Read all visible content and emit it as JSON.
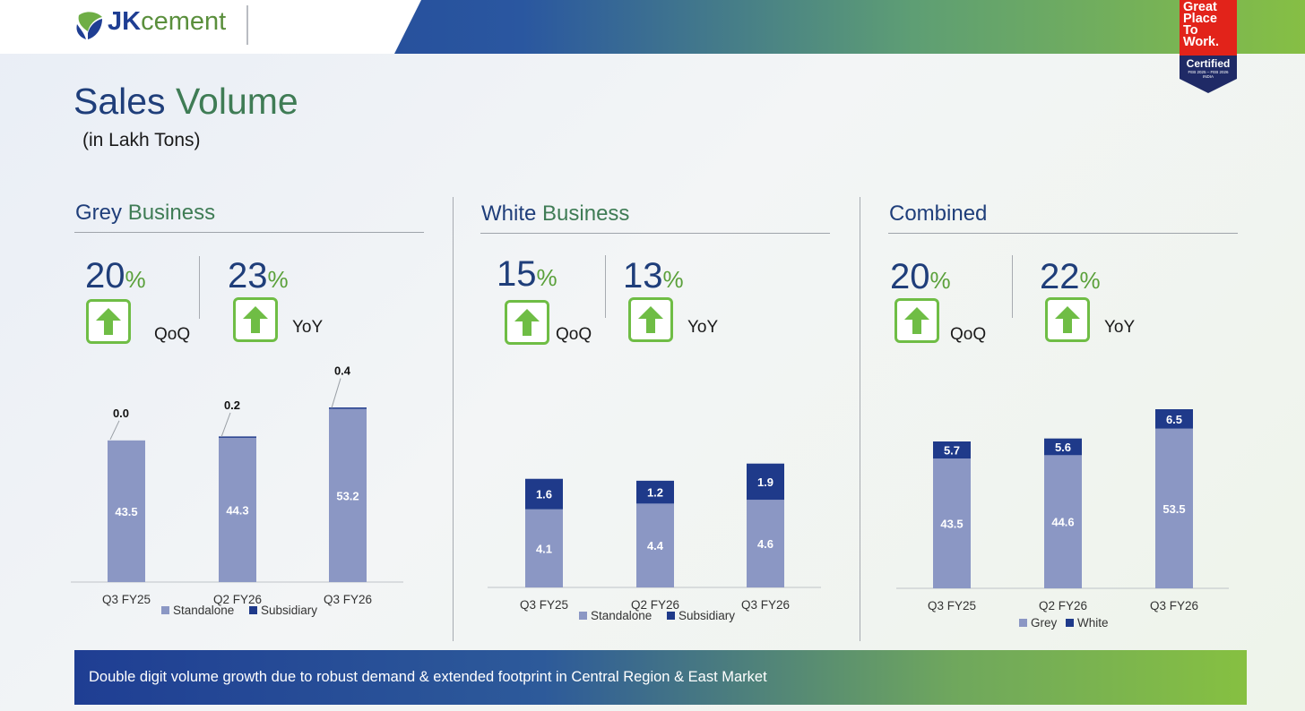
{
  "header": {
    "logo_prefix": "JK",
    "logo_suffix": "cement",
    "badge": {
      "line1": "Great",
      "line2": "Place",
      "line3": "To",
      "line4": "Work.",
      "certified": "Certified",
      "dates": "FEB 2025 – FEB 2026",
      "country": "INDIA"
    }
  },
  "page": {
    "title_part1": "Sales",
    "title_part2": "Volume",
    "subtitle": "(in Lakh Tons)"
  },
  "colors": {
    "standalone": "#8b97c4",
    "subsidiary": "#1f3a8a",
    "accent_green": "#6fbd45"
  },
  "sections": [
    {
      "title_a": "Grey",
      "title_b": "Business",
      "qoq_value": "20",
      "yoy_value": "23",
      "pct_sign": "%",
      "qoq_label": "QoQ",
      "yoy_label": "YoY"
    },
    {
      "title_a": "White",
      "title_b": "Business",
      "qoq_value": "15",
      "yoy_value": "13",
      "pct_sign": "%",
      "qoq_label": "QoQ",
      "yoy_label": "YoY"
    },
    {
      "title_a": "Combined",
      "title_b": "",
      "qoq_value": "20",
      "yoy_value": "22",
      "pct_sign": "%",
      "qoq_label": "QoQ",
      "yoy_label": "YoY"
    }
  ],
  "chart_data": [
    {
      "type": "bar",
      "stacked": true,
      "title": "Grey Business",
      "categories": [
        "Q3 FY25",
        "Q2 FY26",
        "Q3 FY26"
      ],
      "series": [
        {
          "name": "Standalone",
          "values": [
            43.5,
            44.3,
            53.2
          ],
          "labels": [
            "43.5",
            "44.3",
            "53.2"
          ]
        },
        {
          "name": "Subsidiary",
          "values": [
            0.0,
            0.2,
            0.4
          ],
          "labels": [
            "0.0",
            "0.2",
            "0.4"
          ]
        }
      ],
      "top_labels_outside": true,
      "ylim": [
        0,
        55
      ]
    },
    {
      "type": "bar",
      "stacked": true,
      "title": "White Business",
      "categories": [
        "Q3 FY25",
        "Q2 FY26",
        "Q3 FY26"
      ],
      "series": [
        {
          "name": "Standalone",
          "values": [
            4.1,
            4.4,
            4.6
          ],
          "labels": [
            "4.1",
            "4.4",
            "4.6"
          ]
        },
        {
          "name": "Subsidiary",
          "values": [
            1.6,
            1.2,
            1.9
          ],
          "labels": [
            "1.6",
            "1.2",
            "1.9"
          ]
        }
      ],
      "top_labels_outside": false,
      "ylim": [
        0,
        9.4
      ]
    },
    {
      "type": "bar",
      "stacked": true,
      "title": "Combined",
      "categories": [
        "Q3 FY25",
        "Q2 FY26",
        "Q3 FY26"
      ],
      "series": [
        {
          "name": "Grey",
          "values": [
            43.5,
            44.6,
            53.5
          ],
          "labels": [
            "43.5",
            "44.6",
            "53.5"
          ]
        },
        {
          "name": "White",
          "values": [
            5.7,
            5.6,
            6.5
          ],
          "labels": [
            "5.7",
            "5.6",
            "6.5"
          ]
        }
      ],
      "top_labels_outside": false,
      "ylim": [
        0,
        75
      ]
    }
  ],
  "footer": {
    "banner_text": "Double digit volume growth due to robust demand & extended footprint in Central Region & East Market"
  }
}
